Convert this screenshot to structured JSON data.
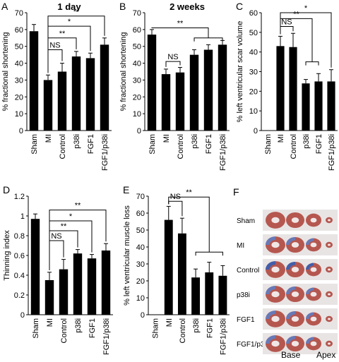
{
  "chart_data": [
    {
      "type": "bar",
      "panel": "A",
      "title": "1 day",
      "ylabel": "% fractional shortening",
      "categories": [
        "Sham",
        "MI",
        "Control",
        "p38i",
        "FGF1",
        "FGF1/p38i"
      ],
      "values": [
        59,
        30,
        35,
        44,
        43,
        51
      ],
      "errors": [
        4,
        3,
        5,
        3,
        3,
        4
      ],
      "color": "#000000",
      "ylim": [
        0,
        70
      ],
      "yticks": [
        0,
        10,
        20,
        30,
        40,
        50,
        60,
        70
      ],
      "annotations": [
        "NS",
        "**",
        "*",
        "**"
      ]
    },
    {
      "type": "bar",
      "panel": "B",
      "title": "2 weeks",
      "ylabel": "% fractional  shortening",
      "categories": [
        "Sham",
        "MI",
        "Control",
        "p38i",
        "FGF1",
        "FGF1/p38i"
      ],
      "values": [
        57,
        33.5,
        34.5,
        45,
        48,
        51
      ],
      "errors": [
        3,
        3,
        3,
        3,
        3,
        2.5
      ],
      "color": "#000000",
      "ylim": [
        0,
        70
      ],
      "yticks": [
        0,
        10,
        20,
        30,
        40,
        50,
        60,
        70
      ],
      "annotations": [
        "NS",
        "**"
      ]
    },
    {
      "type": "bar",
      "panel": "C",
      "ylabel": "% left ventricular scar volume",
      "categories": [
        "Sham",
        "MI",
        "Control",
        "p38i",
        "FGF1",
        "FGF1/p38i"
      ],
      "values": [
        null,
        43,
        42.5,
        24,
        25,
        25
      ],
      "errors": [
        null,
        5,
        7,
        2,
        4,
        6
      ],
      "color": "#000000",
      "ylim": [
        0,
        60
      ],
      "yticks": [
        0,
        10,
        20,
        30,
        40,
        50,
        60
      ],
      "annotations": [
        "NS",
        "**",
        "*"
      ]
    },
    {
      "type": "bar",
      "panel": "D",
      "ylabel": "Thinning index",
      "categories": [
        "Sham",
        "MI",
        "Control",
        "p38i",
        "FGF1",
        "FGF1/p38i"
      ],
      "values": [
        0.97,
        0.35,
        0.46,
        0.62,
        0.57,
        0.65
      ],
      "errors": [
        0.05,
        0.08,
        0.1,
        0.04,
        0.04,
        0.07
      ],
      "color": "#000000",
      "ylim": [
        0,
        1.2
      ],
      "yticks": [
        0,
        0.2,
        0.4,
        0.6,
        0.8,
        1,
        1.2
      ],
      "annotations": [
        "NS",
        "**",
        "*",
        "**"
      ]
    },
    {
      "type": "bar",
      "panel": "E",
      "ylabel": "% left ventricular muscle loss",
      "categories": [
        "Sham",
        "MI",
        "Control",
        "p38i",
        "FGF1",
        "FGF1/p38i"
      ],
      "values": [
        null,
        56,
        48,
        22,
        25,
        23
      ],
      "errors": [
        null,
        8,
        9,
        5,
        6,
        6
      ],
      "color": "#000000",
      "ylim": [
        0,
        70
      ],
      "yticks": [
        0,
        10,
        20,
        30,
        40,
        50,
        60,
        70
      ],
      "annotations": [
        "NS",
        "**"
      ]
    }
  ],
  "image_panel": {
    "panel": "F",
    "rows": [
      "Sham",
      "MI",
      "Control",
      "p38i",
      "FGF1",
      "FGF1/p38i"
    ],
    "x_labels": [
      "Base",
      "Apex"
    ]
  }
}
